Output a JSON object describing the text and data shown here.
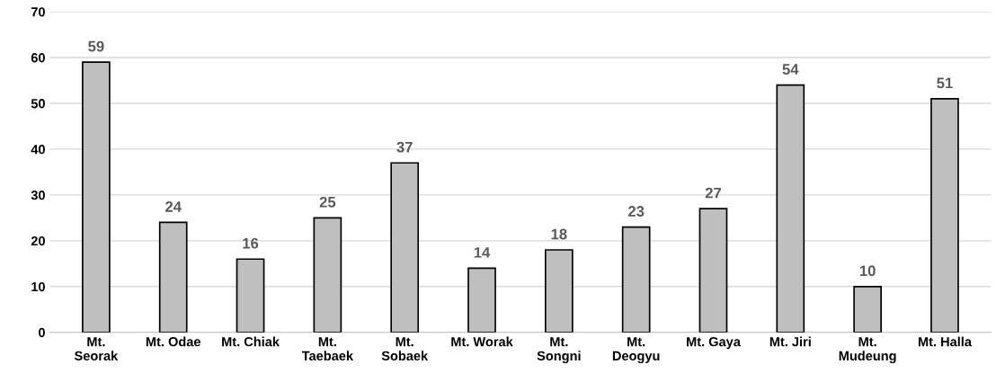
{
  "chart_data": {
    "type": "bar",
    "categories": [
      "Mt. Seorak",
      "Mt. Odae",
      "Mt. Chiak",
      "Mt. Taebaek",
      "Mt. Sobaek",
      "Mt. Worak",
      "Mt. Songni",
      "Mt. Deogyu",
      "Mt. Gaya",
      "Mt. Jiri",
      "Mt. Mudeung",
      "Mt. Halla"
    ],
    "values": [
      59,
      24,
      16,
      25,
      37,
      14,
      18,
      23,
      27,
      54,
      10,
      51
    ],
    "color": "#bfbfbf",
    "ylim": [
      0,
      70
    ],
    "yticks": [
      0,
      10,
      20,
      30,
      40,
      50,
      60,
      70
    ],
    "grid": "y",
    "data_labels": true
  }
}
